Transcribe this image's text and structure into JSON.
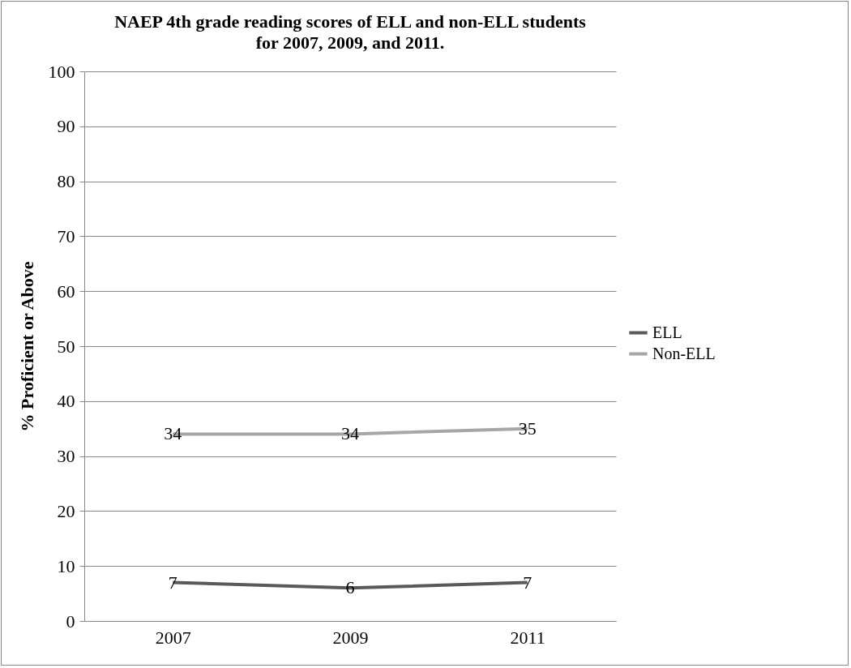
{
  "chart_data": {
    "type": "line",
    "title": "NAEP 4th grade reading scores of ELL and non-ELL students for 2007, 2009, and 2011.",
    "ylabel": "% Proficient or Above",
    "categories": [
      "2007",
      "2009",
      "2011"
    ],
    "series": [
      {
        "name": "ELL",
        "color": "#595959",
        "values": [
          7,
          6,
          7
        ]
      },
      {
        "name": "Non-ELL",
        "color": "#a6a6a6",
        "values": [
          34,
          34,
          35
        ]
      }
    ],
    "ylim": [
      0,
      100
    ],
    "yticks": [
      0,
      10,
      20,
      30,
      40,
      50,
      60,
      70,
      80,
      90,
      100
    ],
    "grid": "y",
    "legend": "right",
    "data_labels": true,
    "marker": "none",
    "line_style": "solid"
  }
}
